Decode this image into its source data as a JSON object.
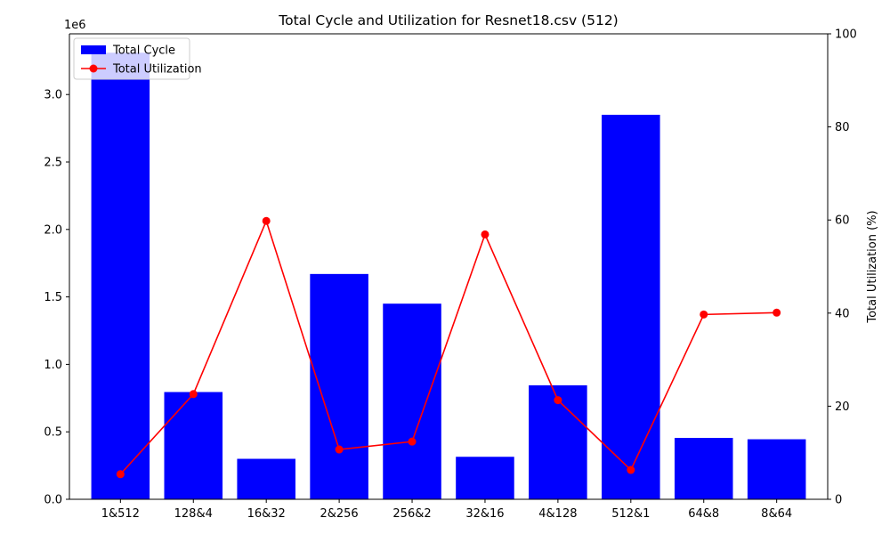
{
  "chart_data": {
    "type": "bar",
    "title": "Total Cycle and Utilization for Resnet18.csv (512)",
    "xlabel": "",
    "categories": [
      "1&512",
      "128&4",
      "16&32",
      "2&256",
      "256&2",
      "32&16",
      "4&128",
      "512&1",
      "64&8",
      "8&64"
    ],
    "left_axis": {
      "label": "",
      "offset_text": "1e6",
      "ylim": [
        0,
        3.45
      ],
      "ticks": [
        0.0,
        0.5,
        1.0,
        1.5,
        2.0,
        2.5,
        3.0
      ],
      "tick_labels": [
        "0.0",
        "0.5",
        "1.0",
        "1.5",
        "2.0",
        "2.5",
        "3.0"
      ]
    },
    "right_axis": {
      "label": "Total Utilization (%)",
      "ylim": [
        0,
        100
      ],
      "ticks": [
        0,
        20,
        40,
        60,
        80,
        100
      ],
      "tick_labels": [
        "0",
        "20",
        "40",
        "60",
        "80",
        "100"
      ]
    },
    "series": [
      {
        "name": "Total Cycle",
        "type": "bar",
        "axis": "left",
        "color": "#0000ff",
        "values": [
          3.31,
          0.795,
          0.3,
          1.67,
          1.45,
          0.315,
          0.845,
          2.85,
          0.455,
          0.445
        ]
      },
      {
        "name": "Total Utilization",
        "type": "line",
        "axis": "right",
        "color": "#ff0000",
        "marker": "circle",
        "values": [
          5.4,
          22.6,
          59.8,
          10.7,
          12.4,
          56.9,
          21.3,
          6.3,
          39.7,
          40.1
        ]
      }
    ],
    "legend": {
      "position": "top-left"
    },
    "grid": false
  }
}
